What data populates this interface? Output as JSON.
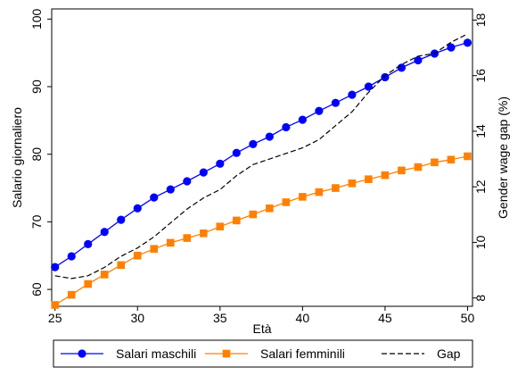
{
  "chart_data": {
    "type": "line",
    "title": "",
    "xlabel": "Età",
    "ylabel_left": "Salario giornaliero",
    "ylabel_right": "Gender wage gap (%)",
    "x": [
      25,
      26,
      27,
      28,
      29,
      30,
      31,
      32,
      33,
      34,
      35,
      36,
      37,
      38,
      39,
      40,
      41,
      42,
      43,
      44,
      45,
      46,
      47,
      48,
      49,
      50
    ],
    "xlim": [
      24.8,
      50.3
    ],
    "x_ticks": [
      25,
      30,
      35,
      40,
      45,
      50
    ],
    "ylim_left": [
      57.5,
      101.5
    ],
    "y_ticks_left": [
      60,
      70,
      80,
      90,
      100
    ],
    "ylim_right": [
      7.7,
      18.4
    ],
    "y_ticks_right": [
      8,
      10,
      12,
      14,
      16,
      18
    ],
    "grid": false,
    "legend_placement": "bottom",
    "series": [
      {
        "name": "Salari maschili",
        "axis": "left",
        "color": "#0000ff",
        "marker": "circle",
        "values": [
          63.3,
          64.9,
          66.7,
          68.5,
          70.3,
          72.0,
          73.6,
          74.8,
          76.0,
          77.3,
          78.6,
          80.2,
          81.5,
          82.6,
          84.0,
          85.1,
          86.4,
          87.6,
          88.8,
          90.0,
          91.4,
          92.8,
          93.9,
          94.9,
          95.8,
          96.5
        ]
      },
      {
        "name": "Salari femminili",
        "axis": "left",
        "color": "#ff8000",
        "marker": "square",
        "values": [
          57.7,
          59.2,
          60.8,
          62.2,
          63.6,
          65.0,
          66.0,
          66.9,
          67.6,
          68.3,
          69.3,
          70.2,
          71.1,
          72.0,
          72.9,
          73.7,
          74.4,
          75.0,
          75.7,
          76.3,
          76.9,
          77.6,
          78.1,
          78.8,
          79.2,
          79.7
        ]
      },
      {
        "name": "Gap",
        "axis": "right",
        "color": "#000000",
        "style": "dashed",
        "values": [
          8.8,
          8.7,
          8.8,
          9.1,
          9.5,
          9.8,
          10.2,
          10.7,
          11.2,
          11.6,
          11.9,
          12.4,
          12.8,
          13.0,
          13.2,
          13.4,
          13.7,
          14.2,
          14.7,
          15.4,
          16.0,
          16.4,
          16.7,
          16.8,
          17.2,
          17.5
        ]
      }
    ]
  }
}
